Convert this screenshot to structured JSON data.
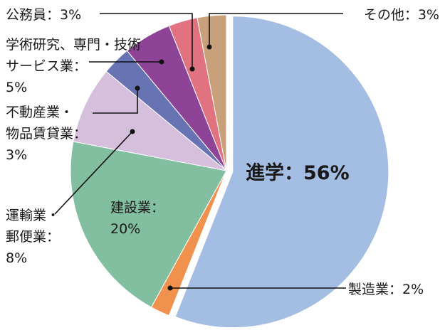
{
  "chart_data": {
    "type": "pie",
    "title": "",
    "slices": [
      {
        "label": "進学",
        "value": 56,
        "color": "#a3bde3",
        "label_lines": [
          "進学：56%"
        ]
      },
      {
        "label": "製造業",
        "value": 2,
        "color": "#f0924e",
        "label_lines": [
          "製造業：2%"
        ]
      },
      {
        "label": "建設業",
        "value": 20,
        "color": "#82bfa0",
        "label_lines": [
          "建設業：",
          "20%"
        ]
      },
      {
        "label": "運輸業・郵便業",
        "value": 8,
        "color": "#d6bfdc",
        "label_lines": [
          "運輸業・",
          "郵便業：",
          "8%"
        ]
      },
      {
        "label": "不動産業・物品賃貸業",
        "value": 3,
        "color": "#6773b3",
        "label_lines": [
          "不動産業・",
          "物品賃貸業：",
          "3%"
        ]
      },
      {
        "label": "学術研究、専門・技術サービス業",
        "value": 5,
        "color": "#8d4497",
        "label_lines": [
          "学術研究、専門・技術",
          "サービス業：",
          "5%"
        ]
      },
      {
        "label": "公務員",
        "value": 3,
        "color": "#e0737f",
        "label_lines": [
          "公務員：3%"
        ]
      },
      {
        "label": "その他",
        "value": 3,
        "color": "#c8a07a",
        "label_lines": [
          "その他：3%"
        ]
      }
    ]
  }
}
